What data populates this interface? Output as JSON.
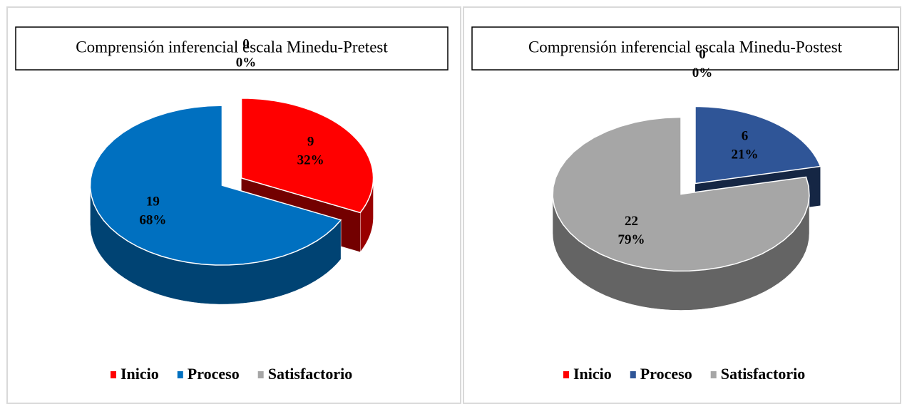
{
  "chart_data": [
    {
      "type": "pie",
      "title": "Comprensión inferencial escala Minedu-Pretest",
      "categories": [
        "Inicio",
        "Proceso",
        "Satisfactorio"
      ],
      "values": [
        9,
        19,
        0
      ],
      "percent_labels": [
        "32%",
        "68%",
        "0%"
      ],
      "colors": [
        "#ff0000",
        "#0070c0",
        "#a6a6a6"
      ]
    },
    {
      "type": "pie",
      "title": "Comprensión inferencial escala Minedu-Postest",
      "categories": [
        "Inicio",
        "Proceso",
        "Satisfactorio"
      ],
      "values": [
        0,
        6,
        22
      ],
      "percent_labels": [
        "0%",
        "21%",
        "79%"
      ],
      "colors": [
        "#ff0000",
        "#2f5597",
        "#a6a6a6"
      ]
    }
  ]
}
